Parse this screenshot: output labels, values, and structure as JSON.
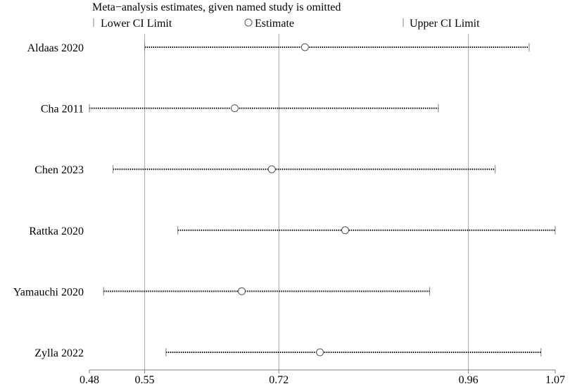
{
  "chart_data": {
    "type": "forest",
    "title": "Meta−analysis estimates, given named study is omitted",
    "legend": [
      {
        "symbol": "lower-limit-tick",
        "label": "Lower CI Limit"
      },
      {
        "symbol": "estimate-circle",
        "label": "Estimate"
      },
      {
        "symbol": "upper-limit-tick",
        "label": "Upper CI Limit"
      }
    ],
    "legend_position": "top",
    "xlim": [
      0.48,
      1.07
    ],
    "x_ticks": [
      0.48,
      0.55,
      0.72,
      0.96,
      1.07
    ],
    "x_tick_labels": [
      "0.48",
      "0.55",
      "0.72",
      "0.96",
      "1.07"
    ],
    "reference_lines": [
      0.55,
      0.72,
      0.96
    ],
    "studies": [
      {
        "name": "Aldaas 2020",
        "lower": 0.55,
        "estimate": 0.753,
        "upper": 1.037
      },
      {
        "name": "Cha 2011",
        "lower": 0.48,
        "estimate": 0.664,
        "upper": 0.922
      },
      {
        "name": "Chen 2023",
        "lower": 0.51,
        "estimate": 0.711,
        "upper": 0.994
      },
      {
        "name": "Rattka 2020",
        "lower": 0.592,
        "estimate": 0.804,
        "upper": 1.07
      },
      {
        "name": "Yamauchi 2020",
        "lower": 0.498,
        "estimate": 0.673,
        "upper": 0.911
      },
      {
        "name": "Zylla 2022",
        "lower": 0.577,
        "estimate": 0.772,
        "upper": 1.052
      }
    ],
    "colors": {
      "line": "#000000",
      "gridline": "#a6a6a6",
      "axis": "#7f7f7f",
      "marker": "#555555"
    }
  }
}
